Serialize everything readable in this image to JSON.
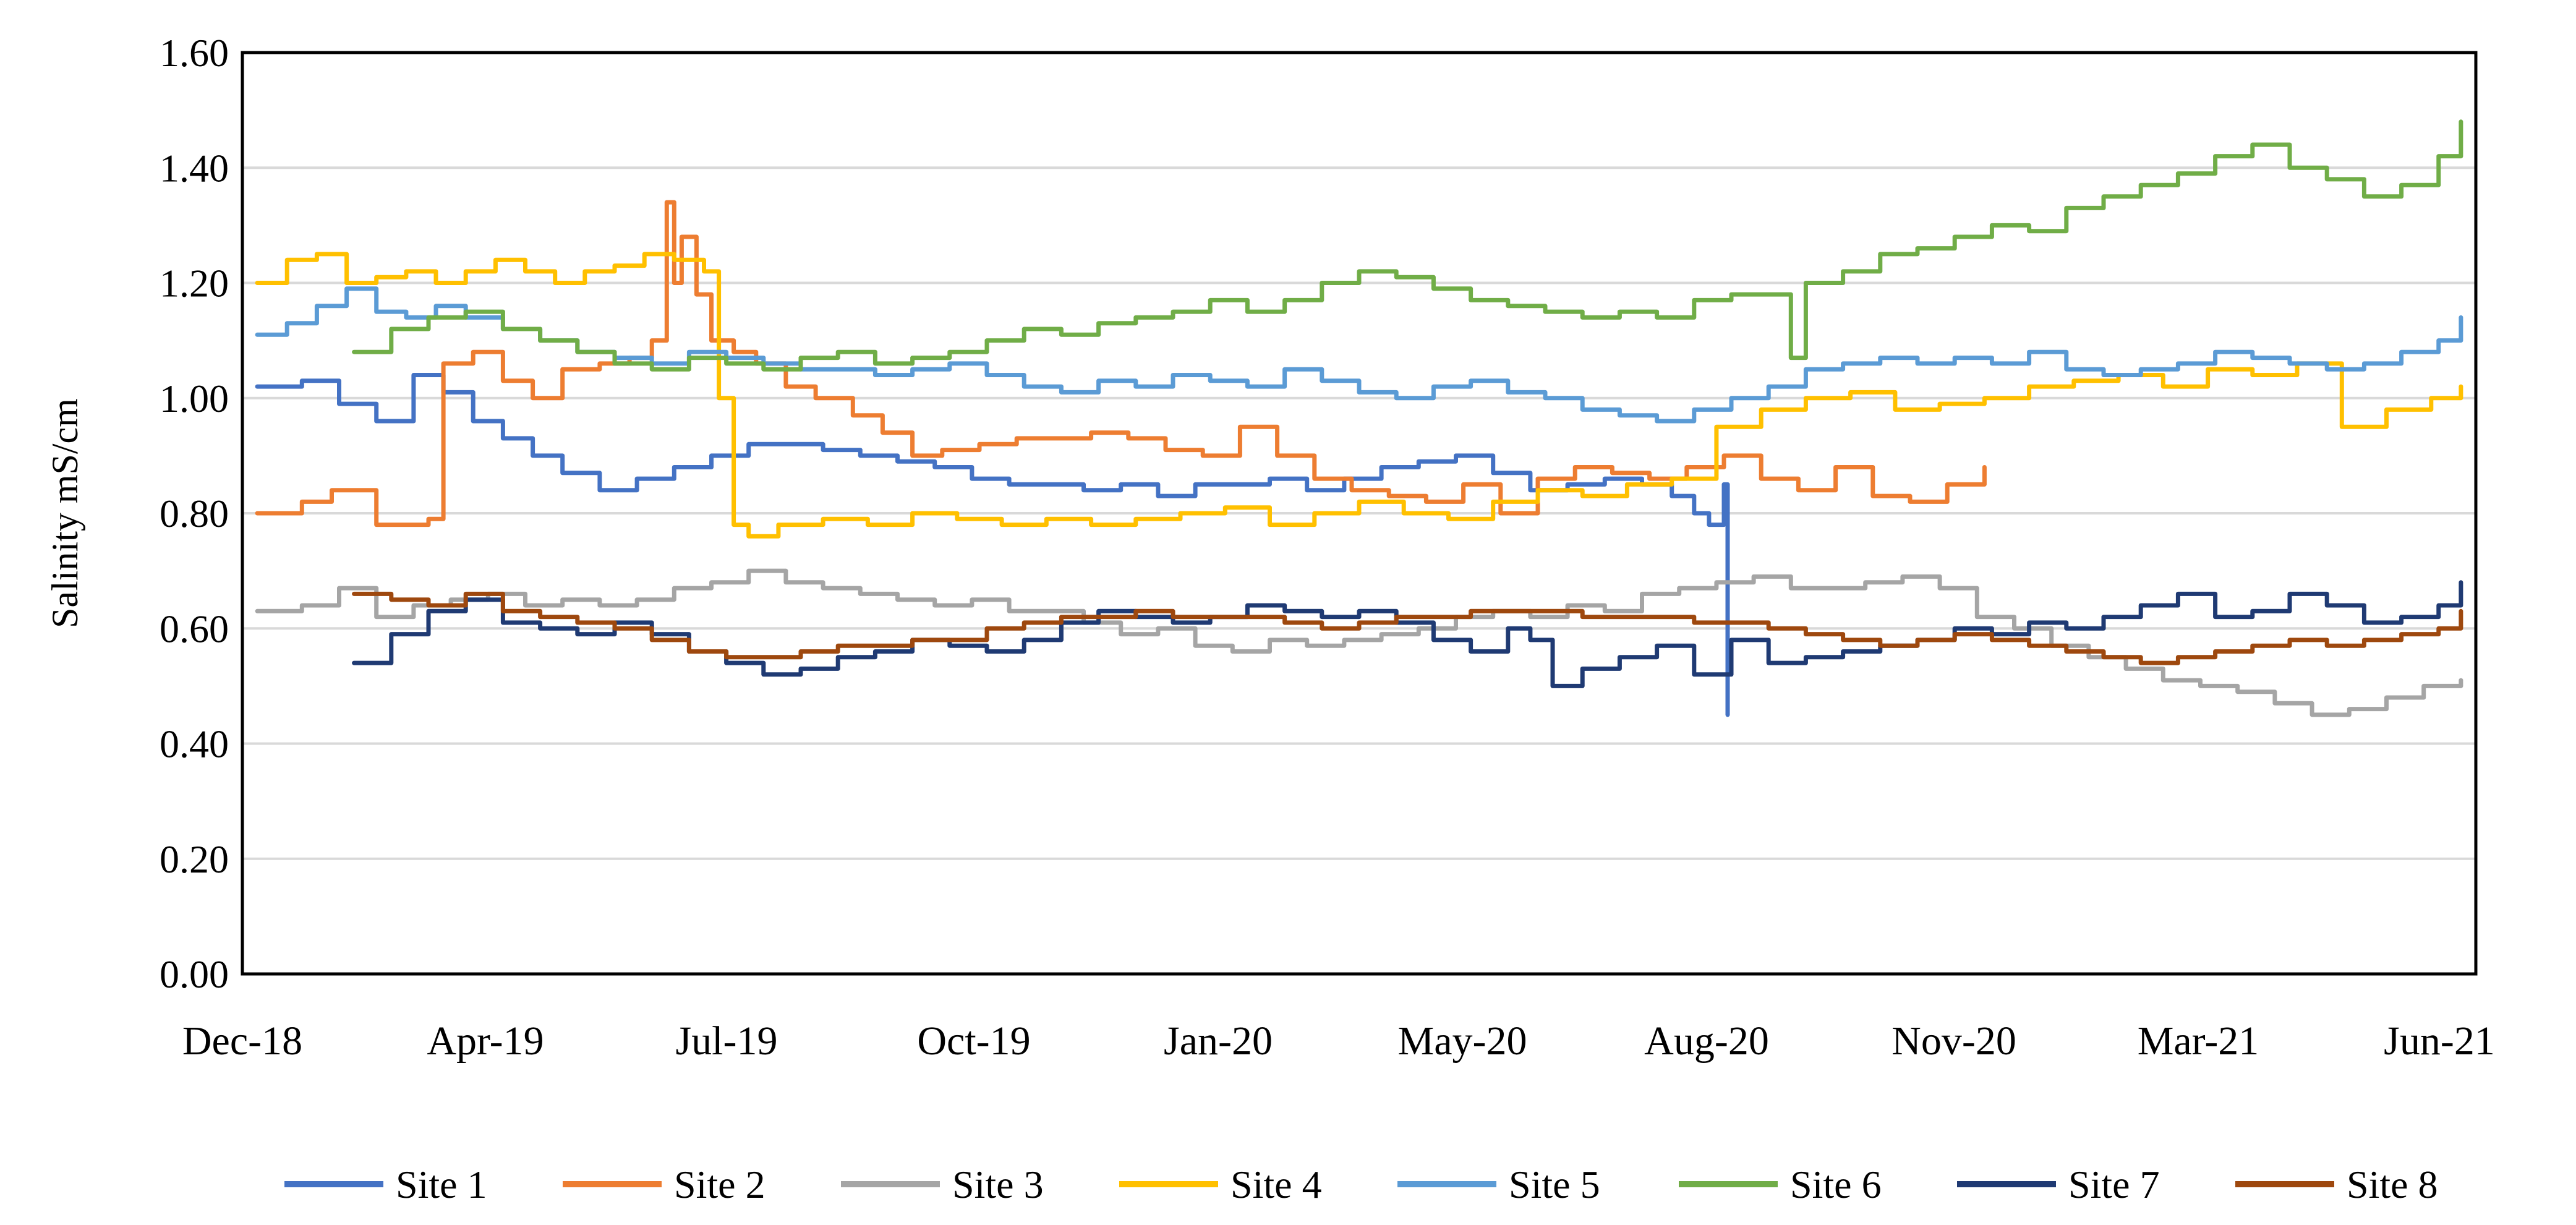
{
  "chart_data": {
    "type": "line",
    "title": "",
    "xlabel": "",
    "ylabel": "Salinity  mS/cm",
    "ylim": [
      0.0,
      1.6
    ],
    "yticks": [
      "0.00",
      "0.20",
      "0.40",
      "0.60",
      "0.80",
      "1.00",
      "1.20",
      "1.40",
      "1.60"
    ],
    "xlim_month_index": [
      0,
      30
    ],
    "xticks": [
      {
        "label": "Dec-18",
        "month_index": 0
      },
      {
        "label": "Apr-19",
        "month_index": 3.4
      },
      {
        "label": "Jul-19",
        "month_index": 6.8
      },
      {
        "label": "Oct-19",
        "month_index": 10.2
      },
      {
        "label": "Jan-20",
        "month_index": 13.6
      },
      {
        "label": "May-20",
        "month_index": 17.0
      },
      {
        "label": "Aug-20",
        "month_index": 20.4
      },
      {
        "label": "Nov-20",
        "month_index": 23.8
      },
      {
        "label": "Mar-21",
        "month_index": 27.2
      },
      {
        "label": "Jun-21",
        "month_index": 30.6
      }
    ],
    "grid": "horizontal",
    "legend_position": "bottom",
    "x_unit": "months since Dec-18 (approximate)",
    "series": [
      {
        "name": "Site 1",
        "color": "#4472C4",
        "x": [
          0.2,
          0.8,
          1.3,
          1.8,
          2.3,
          2.7,
          3.1,
          3.5,
          3.9,
          4.3,
          4.8,
          5.3,
          5.8,
          6.3,
          6.8,
          7.3,
          7.8,
          8.3,
          8.8,
          9.3,
          9.8,
          10.3,
          10.8,
          11.3,
          11.8,
          12.3,
          12.8,
          13.3,
          13.8,
          14.3,
          14.8,
          15.3,
          15.8,
          16.3,
          16.8,
          17.3,
          17.8,
          18.3,
          18.8,
          19.2,
          19.5,
          19.7,
          19.85,
          19.9,
          19.95
        ],
        "values": [
          1.02,
          1.03,
          0.99,
          0.96,
          1.04,
          1.01,
          0.96,
          0.93,
          0.9,
          0.87,
          0.84,
          0.86,
          0.88,
          0.9,
          0.92,
          0.92,
          0.91,
          0.9,
          0.89,
          0.88,
          0.86,
          0.85,
          0.85,
          0.84,
          0.85,
          0.83,
          0.85,
          0.85,
          0.86,
          0.84,
          0.86,
          0.88,
          0.89,
          0.9,
          0.87,
          0.84,
          0.85,
          0.86,
          0.85,
          0.83,
          0.8,
          0.78,
          0.78,
          0.85,
          0.45
        ]
      },
      {
        "name": "Site 2",
        "color": "#ED7D31",
        "x": [
          0.2,
          0.8,
          1.2,
          1.8,
          2.2,
          2.5,
          2.7,
          3.1,
          3.5,
          3.9,
          4.3,
          4.8,
          5.2,
          5.5,
          5.7,
          5.8,
          5.9,
          6.1,
          6.3,
          6.6,
          6.9,
          7.3,
          7.7,
          8.2,
          8.6,
          9.0,
          9.4,
          9.9,
          10.4,
          10.9,
          11.4,
          11.9,
          12.4,
          12.9,
          13.4,
          13.9,
          14.4,
          14.9,
          15.4,
          15.9,
          16.4,
          16.9,
          17.4,
          17.9,
          18.4,
          18.9,
          19.4,
          19.9,
          20.4,
          20.9,
          21.4,
          21.9,
          22.4,
          22.9,
          23.4
        ],
        "values": [
          0.8,
          0.82,
          0.84,
          0.78,
          0.78,
          0.79,
          1.06,
          1.08,
          1.03,
          1.0,
          1.05,
          1.06,
          1.07,
          1.1,
          1.34,
          1.2,
          1.28,
          1.18,
          1.1,
          1.08,
          1.06,
          1.02,
          1.0,
          0.97,
          0.94,
          0.9,
          0.91,
          0.92,
          0.93,
          0.93,
          0.94,
          0.93,
          0.91,
          0.9,
          0.95,
          0.9,
          0.86,
          0.84,
          0.83,
          0.82,
          0.85,
          0.8,
          0.86,
          0.88,
          0.87,
          0.86,
          0.88,
          0.9,
          0.86,
          0.84,
          0.88,
          0.83,
          0.82,
          0.85,
          0.88
        ]
      },
      {
        "name": "Site 3",
        "color": "#A5A5A5",
        "x": [
          0.2,
          0.8,
          1.3,
          1.8,
          2.3,
          2.8,
          3.3,
          3.8,
          4.3,
          4.8,
          5.3,
          5.8,
          6.3,
          6.8,
          7.3,
          7.8,
          8.3,
          8.8,
          9.3,
          9.8,
          10.3,
          10.8,
          11.3,
          11.8,
          12.3,
          12.8,
          13.3,
          13.8,
          14.3,
          14.8,
          15.3,
          15.8,
          16.3,
          16.8,
          17.3,
          17.8,
          18.3,
          18.8,
          19.3,
          19.8,
          20.3,
          20.8,
          21.3,
          21.8,
          22.3,
          22.8,
          23.3,
          23.8,
          24.3,
          24.8,
          25.3,
          25.8,
          26.3,
          26.8,
          27.3,
          27.8,
          28.3,
          28.8,
          29.3,
          29.8
        ],
        "values": [
          0.63,
          0.64,
          0.67,
          0.62,
          0.64,
          0.65,
          0.66,
          0.64,
          0.65,
          0.64,
          0.65,
          0.67,
          0.68,
          0.7,
          0.68,
          0.67,
          0.66,
          0.65,
          0.64,
          0.65,
          0.63,
          0.63,
          0.61,
          0.59,
          0.6,
          0.57,
          0.56,
          0.58,
          0.57,
          0.58,
          0.59,
          0.6,
          0.62,
          0.63,
          0.62,
          0.64,
          0.63,
          0.66,
          0.67,
          0.68,
          0.69,
          0.67,
          0.67,
          0.68,
          0.69,
          0.67,
          0.62,
          0.6,
          0.57,
          0.55,
          0.53,
          0.51,
          0.5,
          0.49,
          0.47,
          0.45,
          0.46,
          0.48,
          0.5,
          0.51
        ]
      },
      {
        "name": "Site 4",
        "color": "#FFC000",
        "x": [
          0.2,
          0.6,
          1.0,
          1.4,
          1.8,
          2.2,
          2.6,
          3.0,
          3.4,
          3.8,
          4.2,
          4.6,
          5.0,
          5.4,
          5.8,
          6.2,
          6.4,
          6.6,
          6.8,
          7.2,
          7.8,
          8.4,
          9.0,
          9.6,
          10.2,
          10.8,
          11.4,
          12.0,
          12.6,
          13.2,
          13.8,
          14.4,
          15.0,
          15.6,
          16.2,
          16.8,
          17.4,
          18.0,
          18.6,
          19.2,
          19.8,
          20.4,
          21.0,
          21.6,
          22.2,
          22.8,
          23.4,
          24.0,
          24.6,
          25.2,
          25.8,
          26.4,
          27.0,
          27.6,
          28.2,
          28.8,
          29.4,
          29.8
        ],
        "values": [
          1.2,
          1.24,
          1.25,
          1.2,
          1.21,
          1.22,
          1.2,
          1.22,
          1.24,
          1.22,
          1.2,
          1.22,
          1.23,
          1.25,
          1.24,
          1.22,
          1.0,
          0.78,
          0.76,
          0.78,
          0.79,
          0.78,
          0.8,
          0.79,
          0.78,
          0.79,
          0.78,
          0.79,
          0.8,
          0.81,
          0.78,
          0.8,
          0.82,
          0.8,
          0.79,
          0.82,
          0.84,
          0.83,
          0.85,
          0.86,
          0.95,
          0.98,
          1.0,
          1.01,
          0.98,
          0.99,
          1.0,
          1.02,
          1.03,
          1.04,
          1.02,
          1.05,
          1.04,
          1.06,
          0.95,
          0.98,
          1.0,
          1.02
        ]
      },
      {
        "name": "Site 5",
        "color": "#5B9BD5",
        "x": [
          0.2,
          0.6,
          1.0,
          1.4,
          1.8,
          2.2,
          2.6,
          3.0,
          3.5,
          4.0,
          4.5,
          5.0,
          5.5,
          6.0,
          6.5,
          7.0,
          7.5,
          8.0,
          8.5,
          9.0,
          9.5,
          10.0,
          10.5,
          11.0,
          11.5,
          12.0,
          12.5,
          13.0,
          13.5,
          14.0,
          14.5,
          15.0,
          15.5,
          16.0,
          16.5,
          17.0,
          17.5,
          18.0,
          18.5,
          19.0,
          19.5,
          20.0,
          20.5,
          21.0,
          21.5,
          22.0,
          22.5,
          23.0,
          23.5,
          24.0,
          24.5,
          25.0,
          25.5,
          26.0,
          26.5,
          27.0,
          27.5,
          28.0,
          28.5,
          29.0,
          29.5,
          29.8
        ],
        "values": [
          1.11,
          1.13,
          1.16,
          1.19,
          1.15,
          1.14,
          1.16,
          1.14,
          1.12,
          1.1,
          1.08,
          1.07,
          1.06,
          1.08,
          1.07,
          1.06,
          1.05,
          1.05,
          1.04,
          1.05,
          1.06,
          1.04,
          1.02,
          1.01,
          1.03,
          1.02,
          1.04,
          1.03,
          1.02,
          1.05,
          1.03,
          1.01,
          1.0,
          1.02,
          1.03,
          1.01,
          1.0,
          0.98,
          0.97,
          0.96,
          0.98,
          1.0,
          1.02,
          1.05,
          1.06,
          1.07,
          1.06,
          1.07,
          1.06,
          1.08,
          1.05,
          1.04,
          1.05,
          1.06,
          1.08,
          1.07,
          1.06,
          1.05,
          1.06,
          1.08,
          1.1,
          1.14
        ]
      },
      {
        "name": "Site 6",
        "color": "#70AD47",
        "x": [
          1.5,
          2.0,
          2.5,
          3.0,
          3.5,
          4.0,
          4.5,
          5.0,
          5.5,
          6.0,
          6.5,
          7.0,
          7.5,
          8.0,
          8.5,
          9.0,
          9.5,
          10.0,
          10.5,
          11.0,
          11.5,
          12.0,
          12.5,
          13.0,
          13.5,
          14.0,
          14.5,
          15.0,
          15.5,
          16.0,
          16.5,
          17.0,
          17.5,
          18.0,
          18.5,
          19.0,
          19.5,
          20.0,
          20.5,
          20.8,
          21.0,
          21.5,
          22.0,
          22.5,
          23.0,
          23.5,
          24.0,
          24.5,
          25.0,
          25.5,
          26.0,
          26.5,
          27.0,
          27.5,
          28.0,
          28.5,
          29.0,
          29.5,
          29.8
        ],
        "values": [
          1.08,
          1.12,
          1.14,
          1.15,
          1.12,
          1.1,
          1.08,
          1.06,
          1.05,
          1.07,
          1.06,
          1.05,
          1.07,
          1.08,
          1.06,
          1.07,
          1.08,
          1.1,
          1.12,
          1.11,
          1.13,
          1.14,
          1.15,
          1.17,
          1.15,
          1.17,
          1.2,
          1.22,
          1.21,
          1.19,
          1.17,
          1.16,
          1.15,
          1.14,
          1.15,
          1.14,
          1.17,
          1.18,
          1.18,
          1.07,
          1.2,
          1.22,
          1.25,
          1.26,
          1.28,
          1.3,
          1.29,
          1.33,
          1.35,
          1.37,
          1.39,
          1.42,
          1.44,
          1.4,
          1.38,
          1.35,
          1.37,
          1.42,
          1.48
        ]
      },
      {
        "name": "Site 7",
        "color": "#1F3A73",
        "x": [
          1.5,
          2.0,
          2.5,
          3.0,
          3.5,
          4.0,
          4.5,
          5.0,
          5.5,
          6.0,
          6.5,
          7.0,
          7.5,
          8.0,
          8.5,
          9.0,
          9.5,
          10.0,
          10.5,
          11.0,
          11.5,
          12.0,
          12.5,
          13.0,
          13.5,
          14.0,
          14.5,
          15.0,
          15.5,
          16.0,
          16.5,
          17.0,
          17.3,
          17.6,
          18.0,
          18.5,
          19.0,
          19.5,
          20.0,
          20.5,
          21.0,
          21.5,
          22.0,
          22.5,
          23.0,
          23.5,
          24.0,
          24.5,
          25.0,
          25.5,
          26.0,
          26.5,
          27.0,
          27.5,
          28.0,
          28.5,
          29.0,
          29.5,
          29.8
        ],
        "values": [
          0.54,
          0.59,
          0.63,
          0.65,
          0.61,
          0.6,
          0.59,
          0.61,
          0.59,
          0.56,
          0.54,
          0.52,
          0.53,
          0.55,
          0.56,
          0.58,
          0.57,
          0.56,
          0.58,
          0.61,
          0.63,
          0.62,
          0.61,
          0.62,
          0.64,
          0.63,
          0.62,
          0.63,
          0.61,
          0.58,
          0.56,
          0.6,
          0.58,
          0.5,
          0.53,
          0.55,
          0.57,
          0.52,
          0.58,
          0.54,
          0.55,
          0.56,
          0.57,
          0.58,
          0.6,
          0.59,
          0.61,
          0.6,
          0.62,
          0.64,
          0.66,
          0.62,
          0.63,
          0.66,
          0.64,
          0.61,
          0.62,
          0.64,
          0.68
        ]
      },
      {
        "name": "Site 8",
        "color": "#9E480E",
        "x": [
          1.5,
          2.0,
          2.5,
          3.0,
          3.5,
          4.0,
          4.5,
          5.0,
          5.5,
          6.0,
          6.5,
          7.0,
          7.5,
          8.0,
          8.5,
          9.0,
          9.5,
          10.0,
          10.5,
          11.0,
          11.5,
          12.0,
          12.5,
          13.0,
          13.5,
          14.0,
          14.5,
          15.0,
          15.5,
          16.0,
          16.5,
          17.0,
          17.5,
          18.0,
          18.5,
          19.0,
          19.5,
          20.0,
          20.5,
          21.0,
          21.5,
          22.0,
          22.5,
          23.0,
          23.5,
          24.0,
          24.5,
          25.0,
          25.5,
          26.0,
          26.5,
          27.0,
          27.5,
          28.0,
          28.5,
          29.0,
          29.5,
          29.8
        ],
        "values": [
          0.66,
          0.65,
          0.64,
          0.66,
          0.63,
          0.62,
          0.61,
          0.6,
          0.58,
          0.56,
          0.55,
          0.55,
          0.56,
          0.57,
          0.57,
          0.58,
          0.58,
          0.6,
          0.61,
          0.62,
          0.62,
          0.63,
          0.62,
          0.62,
          0.62,
          0.61,
          0.6,
          0.61,
          0.62,
          0.62,
          0.63,
          0.63,
          0.63,
          0.62,
          0.62,
          0.62,
          0.61,
          0.61,
          0.6,
          0.59,
          0.58,
          0.57,
          0.58,
          0.59,
          0.58,
          0.57,
          0.56,
          0.55,
          0.54,
          0.55,
          0.56,
          0.57,
          0.58,
          0.57,
          0.58,
          0.59,
          0.6,
          0.63
        ]
      }
    ]
  }
}
